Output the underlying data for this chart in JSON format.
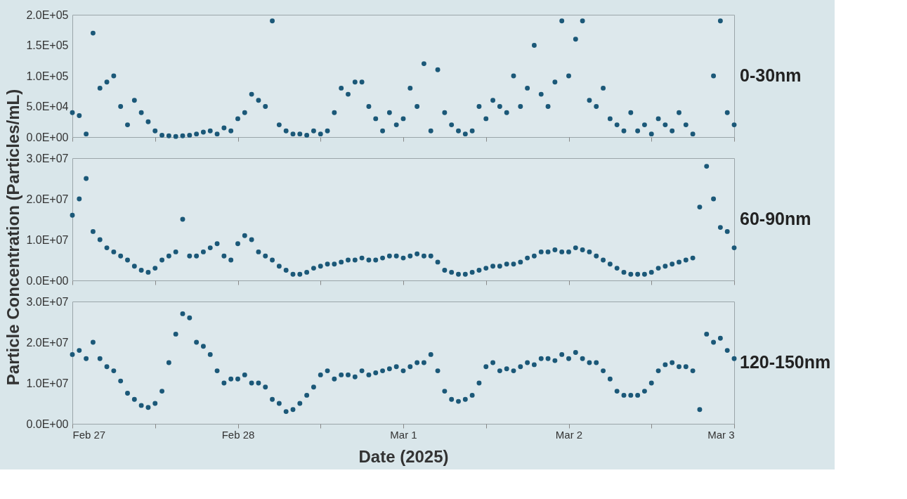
{
  "chart_data": [
    {
      "type": "scatter",
      "title": "0-30nm",
      "marker": "circle",
      "tick_labels": "y",
      "xlim": [
        "2025-02-27T00:00",
        "2025-03-03T00:00"
      ],
      "xticks": [
        {
          "value": "2025-02-27T00:00",
          "label": null
        },
        {
          "value": "2025-02-27T12:00",
          "label": null
        },
        {
          "value": "2025-02-28T00:00",
          "label": null
        },
        {
          "value": "2025-02-28T12:00",
          "label": null
        },
        {
          "value": "2025-03-01T00:00",
          "label": null
        },
        {
          "value": "2025-03-01T12:00",
          "label": null
        },
        {
          "value": "2025-03-02T00:00",
          "label": null
        },
        {
          "value": "2025-03-02T12:00",
          "label": null
        },
        {
          "value": "2025-03-03T00:00",
          "label": null
        }
      ],
      "ylim": [
        0,
        200000
      ],
      "yticks": [
        {
          "value": 0,
          "label": "0.0E+00"
        },
        {
          "value": 50000,
          "label": "5.0E+04"
        },
        {
          "value": 100000,
          "label": "1.0E+05"
        },
        {
          "value": 150000,
          "label": "1.5E+05"
        },
        {
          "value": 200000,
          "label": "2.0E+05"
        }
      ],
      "x": [
        "2025-02-27T00:00",
        "2025-02-27T01:00",
        "2025-02-27T02:00",
        "2025-02-27T03:00",
        "2025-02-27T04:00",
        "2025-02-27T05:00",
        "2025-02-27T06:00",
        "2025-02-27T07:00",
        "2025-02-27T08:00",
        "2025-02-27T09:00",
        "2025-02-27T10:00",
        "2025-02-27T11:00",
        "2025-02-27T12:00",
        "2025-02-27T13:00",
        "2025-02-27T14:00",
        "2025-02-27T15:00",
        "2025-02-27T16:00",
        "2025-02-27T17:00",
        "2025-02-27T18:00",
        "2025-02-27T19:00",
        "2025-02-27T20:00",
        "2025-02-27T21:00",
        "2025-02-27T22:00",
        "2025-02-27T23:00",
        "2025-02-28T00:00",
        "2025-02-28T01:00",
        "2025-02-28T02:00",
        "2025-02-28T03:00",
        "2025-02-28T04:00",
        "2025-02-28T05:00",
        "2025-02-28T06:00",
        "2025-02-28T07:00",
        "2025-02-28T08:00",
        "2025-02-28T09:00",
        "2025-02-28T10:00",
        "2025-02-28T11:00",
        "2025-02-28T12:00",
        "2025-02-28T13:00",
        "2025-02-28T14:00",
        "2025-02-28T15:00",
        "2025-02-28T16:00",
        "2025-02-28T17:00",
        "2025-02-28T18:00",
        "2025-02-28T19:00",
        "2025-02-28T20:00",
        "2025-02-28T21:00",
        "2025-02-28T22:00",
        "2025-02-28T23:00",
        "2025-03-01T00:00",
        "2025-03-01T01:00",
        "2025-03-01T02:00",
        "2025-03-01T03:00",
        "2025-03-01T04:00",
        "2025-03-01T05:00",
        "2025-03-01T06:00",
        "2025-03-01T07:00",
        "2025-03-01T08:00",
        "2025-03-01T09:00",
        "2025-03-01T10:00",
        "2025-03-01T11:00",
        "2025-03-01T12:00",
        "2025-03-01T13:00",
        "2025-03-01T14:00",
        "2025-03-01T15:00",
        "2025-03-01T16:00",
        "2025-03-01T17:00",
        "2025-03-01T18:00",
        "2025-03-01T19:00",
        "2025-03-01T20:00",
        "2025-03-01T21:00",
        "2025-03-01T22:00",
        "2025-03-01T23:00",
        "2025-03-02T00:00",
        "2025-03-02T01:00",
        "2025-03-02T02:00",
        "2025-03-02T03:00",
        "2025-03-02T04:00",
        "2025-03-02T05:00",
        "2025-03-02T06:00",
        "2025-03-02T07:00",
        "2025-03-02T08:00",
        "2025-03-02T09:00",
        "2025-03-02T10:00",
        "2025-03-02T11:00",
        "2025-03-02T12:00",
        "2025-03-02T13:00",
        "2025-03-02T14:00",
        "2025-03-02T15:00",
        "2025-03-02T16:00",
        "2025-03-02T17:00",
        "2025-03-02T18:00",
        "2025-03-02T19:00",
        "2025-03-02T20:00",
        "2025-03-02T21:00",
        "2025-03-02T22:00",
        "2025-03-02T23:00",
        "2025-03-03T00:00"
      ],
      "series": [
        {
          "color": "#1b5878",
          "values": [
            40000,
            35000,
            5000,
            170000,
            80000,
            90000,
            100000,
            50000,
            20000,
            60000,
            40000,
            25000,
            10000,
            3000,
            2000,
            1000,
            2000,
            3000,
            5000,
            8000,
            10000,
            5000,
            15000,
            10000,
            30000,
            40000,
            70000,
            60000,
            50000,
            190000,
            20000,
            10000,
            5000,
            5000,
            3000,
            10000,
            5000,
            10000,
            40000,
            80000,
            70000,
            90000,
            90000,
            50000,
            30000,
            10000,
            40000,
            20000,
            30000,
            80000,
            50000,
            120000,
            10000,
            110000,
            40000,
            20000,
            10000,
            5000,
            10000,
            50000,
            30000,
            60000,
            50000,
            40000,
            100000,
            50000,
            80000,
            150000,
            70000,
            50000,
            90000,
            190000,
            100000,
            160000,
            190000,
            60000,
            50000,
            80000,
            30000,
            20000,
            10000,
            40000,
            10000,
            20000,
            5000,
            30000,
            20000,
            10000,
            40000,
            20000,
            5000,
            null,
            null,
            100000,
            190000,
            40000,
            20000
          ]
        }
      ]
    },
    {
      "type": "scatter",
      "title": "60-90nm",
      "ylabel": "Particle Concentration (Particles/mL)",
      "marker": "circle",
      "tick_labels": "y",
      "xlim": [
        "2025-02-27T00:00",
        "2025-03-03T00:00"
      ],
      "xticks": [
        {
          "value": "2025-02-27T00:00",
          "label": null
        },
        {
          "value": "2025-02-27T12:00",
          "label": null
        },
        {
          "value": "2025-02-28T00:00",
          "label": null
        },
        {
          "value": "2025-02-28T12:00",
          "label": null
        },
        {
          "value": "2025-03-01T00:00",
          "label": null
        },
        {
          "value": "2025-03-01T12:00",
          "label": null
        },
        {
          "value": "2025-03-02T00:00",
          "label": null
        },
        {
          "value": "2025-03-02T12:00",
          "label": null
        },
        {
          "value": "2025-03-03T00:00",
          "label": null
        }
      ],
      "ylim": [
        0,
        30000000
      ],
      "yticks": [
        {
          "value": 0,
          "label": "0.0E+00"
        },
        {
          "value": 10000000,
          "label": "1.0E+07"
        },
        {
          "value": 20000000,
          "label": "2.0E+07"
        },
        {
          "value": 30000000,
          "label": "3.0E+07"
        }
      ],
      "x": [
        "2025-02-27T00:00",
        "2025-02-27T01:00",
        "2025-02-27T02:00",
        "2025-02-27T03:00",
        "2025-02-27T04:00",
        "2025-02-27T05:00",
        "2025-02-27T06:00",
        "2025-02-27T07:00",
        "2025-02-27T08:00",
        "2025-02-27T09:00",
        "2025-02-27T10:00",
        "2025-02-27T11:00",
        "2025-02-27T12:00",
        "2025-02-27T13:00",
        "2025-02-27T14:00",
        "2025-02-27T15:00",
        "2025-02-27T16:00",
        "2025-02-27T17:00",
        "2025-02-27T18:00",
        "2025-02-27T19:00",
        "2025-02-27T20:00",
        "2025-02-27T21:00",
        "2025-02-27T22:00",
        "2025-02-27T23:00",
        "2025-02-28T00:00",
        "2025-02-28T01:00",
        "2025-02-28T02:00",
        "2025-02-28T03:00",
        "2025-02-28T04:00",
        "2025-02-28T05:00",
        "2025-02-28T06:00",
        "2025-02-28T07:00",
        "2025-02-28T08:00",
        "2025-02-28T09:00",
        "2025-02-28T10:00",
        "2025-02-28T11:00",
        "2025-02-28T12:00",
        "2025-02-28T13:00",
        "2025-02-28T14:00",
        "2025-02-28T15:00",
        "2025-02-28T16:00",
        "2025-02-28T17:00",
        "2025-02-28T18:00",
        "2025-02-28T19:00",
        "2025-02-28T20:00",
        "2025-02-28T21:00",
        "2025-02-28T22:00",
        "2025-02-28T23:00",
        "2025-03-01T00:00",
        "2025-03-01T01:00",
        "2025-03-01T02:00",
        "2025-03-01T03:00",
        "2025-03-01T04:00",
        "2025-03-01T05:00",
        "2025-03-01T06:00",
        "2025-03-01T07:00",
        "2025-03-01T08:00",
        "2025-03-01T09:00",
        "2025-03-01T10:00",
        "2025-03-01T11:00",
        "2025-03-01T12:00",
        "2025-03-01T13:00",
        "2025-03-01T14:00",
        "2025-03-01T15:00",
        "2025-03-01T16:00",
        "2025-03-01T17:00",
        "2025-03-01T18:00",
        "2025-03-01T19:00",
        "2025-03-01T20:00",
        "2025-03-01T21:00",
        "2025-03-01T22:00",
        "2025-03-01T23:00",
        "2025-03-02T00:00",
        "2025-03-02T01:00",
        "2025-03-02T02:00",
        "2025-03-02T03:00",
        "2025-03-02T04:00",
        "2025-03-02T05:00",
        "2025-03-02T06:00",
        "2025-03-02T07:00",
        "2025-03-02T08:00",
        "2025-03-02T09:00",
        "2025-03-02T10:00",
        "2025-03-02T11:00",
        "2025-03-02T12:00",
        "2025-03-02T13:00",
        "2025-03-02T14:00",
        "2025-03-02T15:00",
        "2025-03-02T16:00",
        "2025-03-02T17:00",
        "2025-03-02T18:00",
        "2025-03-02T19:00",
        "2025-03-02T20:00",
        "2025-03-02T21:00",
        "2025-03-02T22:00",
        "2025-03-02T23:00",
        "2025-03-03T00:00"
      ],
      "series": [
        {
          "color": "#1b5878",
          "values": [
            16000000,
            20000000,
            25000000,
            12000000,
            10000000,
            8000000,
            7000000,
            6000000,
            5000000,
            3500000,
            2500000,
            2000000,
            3000000,
            5000000,
            6000000,
            7000000,
            15000000,
            6000000,
            6000000,
            7000000,
            8000000,
            9000000,
            6000000,
            5000000,
            9000000,
            11000000,
            10000000,
            7000000,
            6000000,
            5000000,
            3500000,
            2500000,
            1500000,
            1500000,
            2000000,
            3000000,
            3500000,
            4000000,
            4000000,
            4500000,
            5000000,
            5000000,
            5500000,
            5000000,
            5000000,
            5500000,
            6000000,
            6000000,
            5500000,
            6000000,
            6500000,
            6000000,
            6000000,
            4500000,
            2500000,
            2000000,
            1500000,
            1500000,
            2000000,
            2500000,
            3000000,
            3500000,
            3500000,
            4000000,
            4000000,
            4500000,
            5500000,
            6000000,
            7000000,
            7000000,
            7500000,
            7000000,
            7000000,
            8000000,
            7500000,
            7000000,
            6000000,
            5000000,
            4000000,
            3000000,
            2000000,
            1500000,
            1500000,
            1500000,
            2000000,
            3000000,
            3500000,
            4000000,
            4500000,
            5000000,
            5500000,
            18000000,
            28000000,
            20000000,
            13000000,
            12000000,
            8000000
          ]
        }
      ]
    },
    {
      "type": "scatter",
      "title": "120-150nm",
      "xlabel": "Date (2025)",
      "marker": "circle",
      "xlim": [
        "2025-02-27T00:00",
        "2025-03-03T00:00"
      ],
      "xticks": [
        {
          "value": "2025-02-27T00:00",
          "label": "Feb 27"
        },
        {
          "value": "2025-02-27T12:00",
          "label": null
        },
        {
          "value": "2025-02-28T00:00",
          "label": "Feb 28"
        },
        {
          "value": "2025-02-28T12:00",
          "label": null
        },
        {
          "value": "2025-03-01T00:00",
          "label": "Mar 1"
        },
        {
          "value": "2025-03-01T12:00",
          "label": null
        },
        {
          "value": "2025-03-02T00:00",
          "label": "Mar 2"
        },
        {
          "value": "2025-03-02T12:00",
          "label": null
        },
        {
          "value": "2025-03-03T00:00",
          "label": "Mar 3"
        }
      ],
      "ylim": [
        0,
        30000000
      ],
      "yticks": [
        {
          "value": 0,
          "label": "0.0E+00"
        },
        {
          "value": 10000000,
          "label": "1.0E+07"
        },
        {
          "value": 20000000,
          "label": "2.0E+07"
        },
        {
          "value": 30000000,
          "label": "3.0E+07"
        }
      ],
      "x": [
        "2025-02-27T00:00",
        "2025-02-27T01:00",
        "2025-02-27T02:00",
        "2025-02-27T03:00",
        "2025-02-27T04:00",
        "2025-02-27T05:00",
        "2025-02-27T06:00",
        "2025-02-27T07:00",
        "2025-02-27T08:00",
        "2025-02-27T09:00",
        "2025-02-27T10:00",
        "2025-02-27T11:00",
        "2025-02-27T12:00",
        "2025-02-27T13:00",
        "2025-02-27T14:00",
        "2025-02-27T15:00",
        "2025-02-27T16:00",
        "2025-02-27T17:00",
        "2025-02-27T18:00",
        "2025-02-27T19:00",
        "2025-02-27T20:00",
        "2025-02-27T21:00",
        "2025-02-27T22:00",
        "2025-02-27T23:00",
        "2025-02-28T00:00",
        "2025-02-28T01:00",
        "2025-02-28T02:00",
        "2025-02-28T03:00",
        "2025-02-28T04:00",
        "2025-02-28T05:00",
        "2025-02-28T06:00",
        "2025-02-28T07:00",
        "2025-02-28T08:00",
        "2025-02-28T09:00",
        "2025-02-28T10:00",
        "2025-02-28T11:00",
        "2025-02-28T12:00",
        "2025-02-28T13:00",
        "2025-02-28T14:00",
        "2025-02-28T15:00",
        "2025-02-28T16:00",
        "2025-02-28T17:00",
        "2025-02-28T18:00",
        "2025-02-28T19:00",
        "2025-02-28T20:00",
        "2025-02-28T21:00",
        "2025-02-28T22:00",
        "2025-02-28T23:00",
        "2025-03-01T00:00",
        "2025-03-01T01:00",
        "2025-03-01T02:00",
        "2025-03-01T03:00",
        "2025-03-01T04:00",
        "2025-03-01T05:00",
        "2025-03-01T06:00",
        "2025-03-01T07:00",
        "2025-03-01T08:00",
        "2025-03-01T09:00",
        "2025-03-01T10:00",
        "2025-03-01T11:00",
        "2025-03-01T12:00",
        "2025-03-01T13:00",
        "2025-03-01T14:00",
        "2025-03-01T15:00",
        "2025-03-01T16:00",
        "2025-03-01T17:00",
        "2025-03-01T18:00",
        "2025-03-01T19:00",
        "2025-03-01T20:00",
        "2025-03-01T21:00",
        "2025-03-01T22:00",
        "2025-03-01T23:00",
        "2025-03-02T00:00",
        "2025-03-02T01:00",
        "2025-03-02T02:00",
        "2025-03-02T03:00",
        "2025-03-02T04:00",
        "2025-03-02T05:00",
        "2025-03-02T06:00",
        "2025-03-02T07:00",
        "2025-03-02T08:00",
        "2025-03-02T09:00",
        "2025-03-02T10:00",
        "2025-03-02T11:00",
        "2025-03-02T12:00",
        "2025-03-02T13:00",
        "2025-03-02T14:00",
        "2025-03-02T15:00",
        "2025-03-02T16:00",
        "2025-03-02T17:00",
        "2025-03-02T18:00",
        "2025-03-02T19:00",
        "2025-03-02T20:00",
        "2025-03-02T21:00",
        "2025-03-02T22:00",
        "2025-03-02T23:00",
        "2025-03-03T00:00"
      ],
      "series": [
        {
          "color": "#1b5878",
          "values": [
            17000000,
            18000000,
            16000000,
            20000000,
            16000000,
            14000000,
            13000000,
            10500000,
            7500000,
            6000000,
            4500000,
            4000000,
            5000000,
            8000000,
            15000000,
            22000000,
            27000000,
            26000000,
            20000000,
            19000000,
            17000000,
            13000000,
            10000000,
            11000000,
            11000000,
            12000000,
            10000000,
            10000000,
            9000000,
            6000000,
            5000000,
            3000000,
            3500000,
            5000000,
            7000000,
            9000000,
            12000000,
            13000000,
            11000000,
            12000000,
            12000000,
            11500000,
            13000000,
            12000000,
            12500000,
            13000000,
            13500000,
            14000000,
            13000000,
            14000000,
            15000000,
            15000000,
            17000000,
            13000000,
            8000000,
            6000000,
            5500000,
            6000000,
            7000000,
            10000000,
            14000000,
            15000000,
            13000000,
            13500000,
            13000000,
            14000000,
            15000000,
            14500000,
            16000000,
            16000000,
            15500000,
            17000000,
            16000000,
            17500000,
            16000000,
            15000000,
            15000000,
            13000000,
            11000000,
            8000000,
            7000000,
            7000000,
            7000000,
            8000000,
            10000000,
            13000000,
            14500000,
            15000000,
            14000000,
            14000000,
            13000000,
            3500000,
            22000000,
            20000000,
            21000000,
            18000000,
            16000000
          ]
        }
      ]
    }
  ]
}
